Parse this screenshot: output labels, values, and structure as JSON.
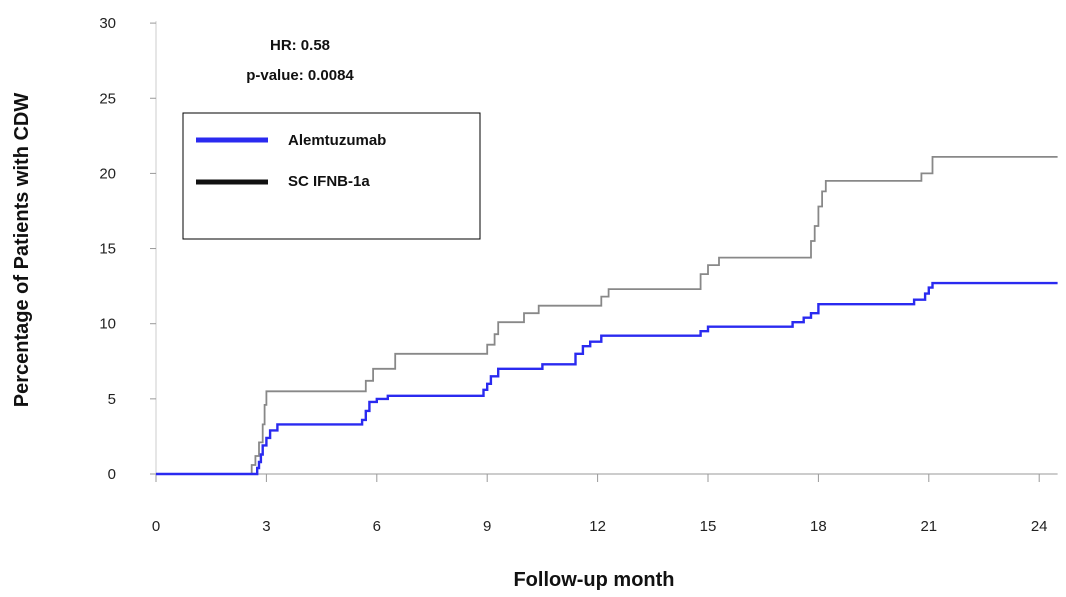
{
  "chart_data": {
    "type": "line",
    "xlabel": "Follow-up month",
    "ylabel": "Percentage of Patients with CDW",
    "xlim": [
      0,
      24.5
    ],
    "ylim": [
      0,
      30
    ],
    "x_ticks": [
      0,
      3,
      6,
      9,
      12,
      15,
      18,
      21,
      24
    ],
    "y_ticks": [
      0,
      5,
      10,
      15,
      20,
      25,
      30
    ],
    "grid": false,
    "annotations": [
      "HR: 0.58",
      "p-value: 0.0084"
    ],
    "legend": {
      "placement": "top-left"
    },
    "series": [
      {
        "name": "Alemtuzumab",
        "color": "#2a2af0",
        "step": true,
        "points": [
          [
            0,
            0
          ],
          [
            2.7,
            0
          ],
          [
            2.75,
            0.4
          ],
          [
            2.8,
            0.8
          ],
          [
            2.85,
            1.3
          ],
          [
            2.9,
            1.9
          ],
          [
            3.0,
            2.4
          ],
          [
            3.1,
            2.9
          ],
          [
            3.3,
            3.3
          ],
          [
            5.5,
            3.3
          ],
          [
            5.6,
            3.6
          ],
          [
            5.7,
            4.2
          ],
          [
            5.8,
            4.8
          ],
          [
            6.0,
            5.0
          ],
          [
            6.3,
            5.2
          ],
          [
            8.7,
            5.2
          ],
          [
            8.9,
            5.6
          ],
          [
            9.0,
            6.0
          ],
          [
            9.1,
            6.5
          ],
          [
            9.3,
            7.0
          ],
          [
            10.3,
            7.0
          ],
          [
            10.5,
            7.3
          ],
          [
            11.2,
            7.3
          ],
          [
            11.4,
            8.0
          ],
          [
            11.6,
            8.5
          ],
          [
            11.8,
            8.8
          ],
          [
            12.1,
            9.2
          ],
          [
            14.7,
            9.2
          ],
          [
            14.8,
            9.5
          ],
          [
            15.0,
            9.8
          ],
          [
            17.1,
            9.8
          ],
          [
            17.3,
            10.1
          ],
          [
            17.6,
            10.4
          ],
          [
            17.8,
            10.7
          ],
          [
            18.0,
            11.3
          ],
          [
            20.5,
            11.3
          ],
          [
            20.6,
            11.6
          ],
          [
            20.9,
            12.0
          ],
          [
            21.0,
            12.4
          ],
          [
            21.1,
            12.7
          ],
          [
            24.5,
            12.7
          ]
        ]
      },
      {
        "name": "SC IFNB-1a",
        "color": "#888888",
        "step": true,
        "points": [
          [
            0,
            0
          ],
          [
            2.55,
            0
          ],
          [
            2.6,
            0.6
          ],
          [
            2.7,
            1.2
          ],
          [
            2.8,
            2.1
          ],
          [
            2.9,
            3.3
          ],
          [
            2.95,
            4.6
          ],
          [
            3.0,
            5.5
          ],
          [
            5.6,
            5.5
          ],
          [
            5.7,
            6.2
          ],
          [
            5.9,
            7.0
          ],
          [
            6.5,
            8.0
          ],
          [
            8.9,
            8.0
          ],
          [
            9.0,
            8.6
          ],
          [
            9.2,
            9.3
          ],
          [
            9.3,
            10.1
          ],
          [
            10.0,
            10.7
          ],
          [
            10.4,
            11.2
          ],
          [
            11.8,
            11.2
          ],
          [
            12.1,
            11.8
          ],
          [
            12.3,
            12.3
          ],
          [
            14.7,
            12.3
          ],
          [
            14.8,
            13.3
          ],
          [
            15.0,
            13.9
          ],
          [
            15.3,
            14.4
          ],
          [
            17.6,
            14.4
          ],
          [
            17.8,
            15.5
          ],
          [
            17.9,
            16.5
          ],
          [
            18.0,
            17.8
          ],
          [
            18.1,
            18.8
          ],
          [
            18.2,
            19.5
          ],
          [
            20.7,
            19.5
          ],
          [
            20.8,
            20.0
          ],
          [
            21.1,
            21.1
          ],
          [
            24.5,
            21.1
          ]
        ]
      }
    ]
  }
}
